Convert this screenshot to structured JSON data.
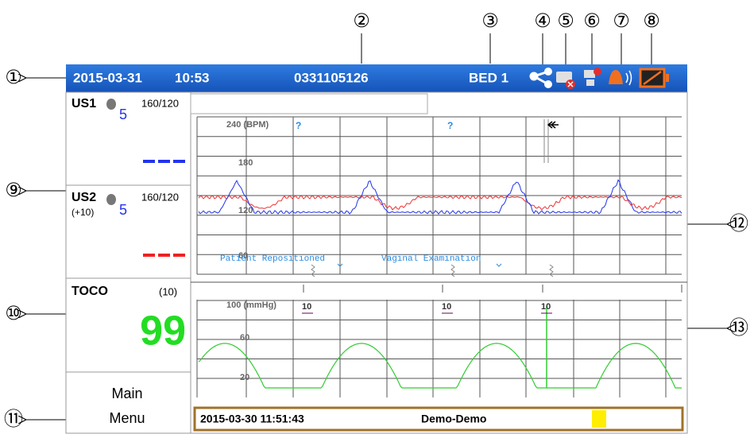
{
  "callouts": [
    "①",
    "②",
    "③",
    "④",
    "⑤",
    "⑥",
    "⑦",
    "⑧",
    "⑨",
    "⑩",
    "⑪",
    "⑫",
    "⑬"
  ],
  "header": {
    "date": "2015-03-31",
    "time": "10:53",
    "id": "0331105126",
    "bed": "BED 1"
  },
  "left_panel": {
    "us1": {
      "label": "US1",
      "volume": "5",
      "limits": "160/120"
    },
    "us2": {
      "label": "US2",
      "offset": "(+10)",
      "volume": "5",
      "limits": "160/120"
    },
    "toco": {
      "label": "TOCO",
      "scale": "(10)",
      "value": "99"
    },
    "menu": [
      "Main",
      "Menu"
    ]
  },
  "fhr_chart": {
    "axis_labels": [
      "240 (BPM)",
      "180",
      "120",
      "60"
    ],
    "markers": [
      "?",
      "?"
    ],
    "events": [
      "Patient Repositioned",
      "Vaginal Examination"
    ]
  },
  "toco_chart": {
    "axis_labels": [
      "100 (mmHg)",
      "60",
      "20"
    ],
    "markers": [
      "10",
      "10",
      "10"
    ]
  },
  "footer": {
    "timestamp": "2015-03-30 11:51:43",
    "patient": "Demo-Demo"
  }
}
